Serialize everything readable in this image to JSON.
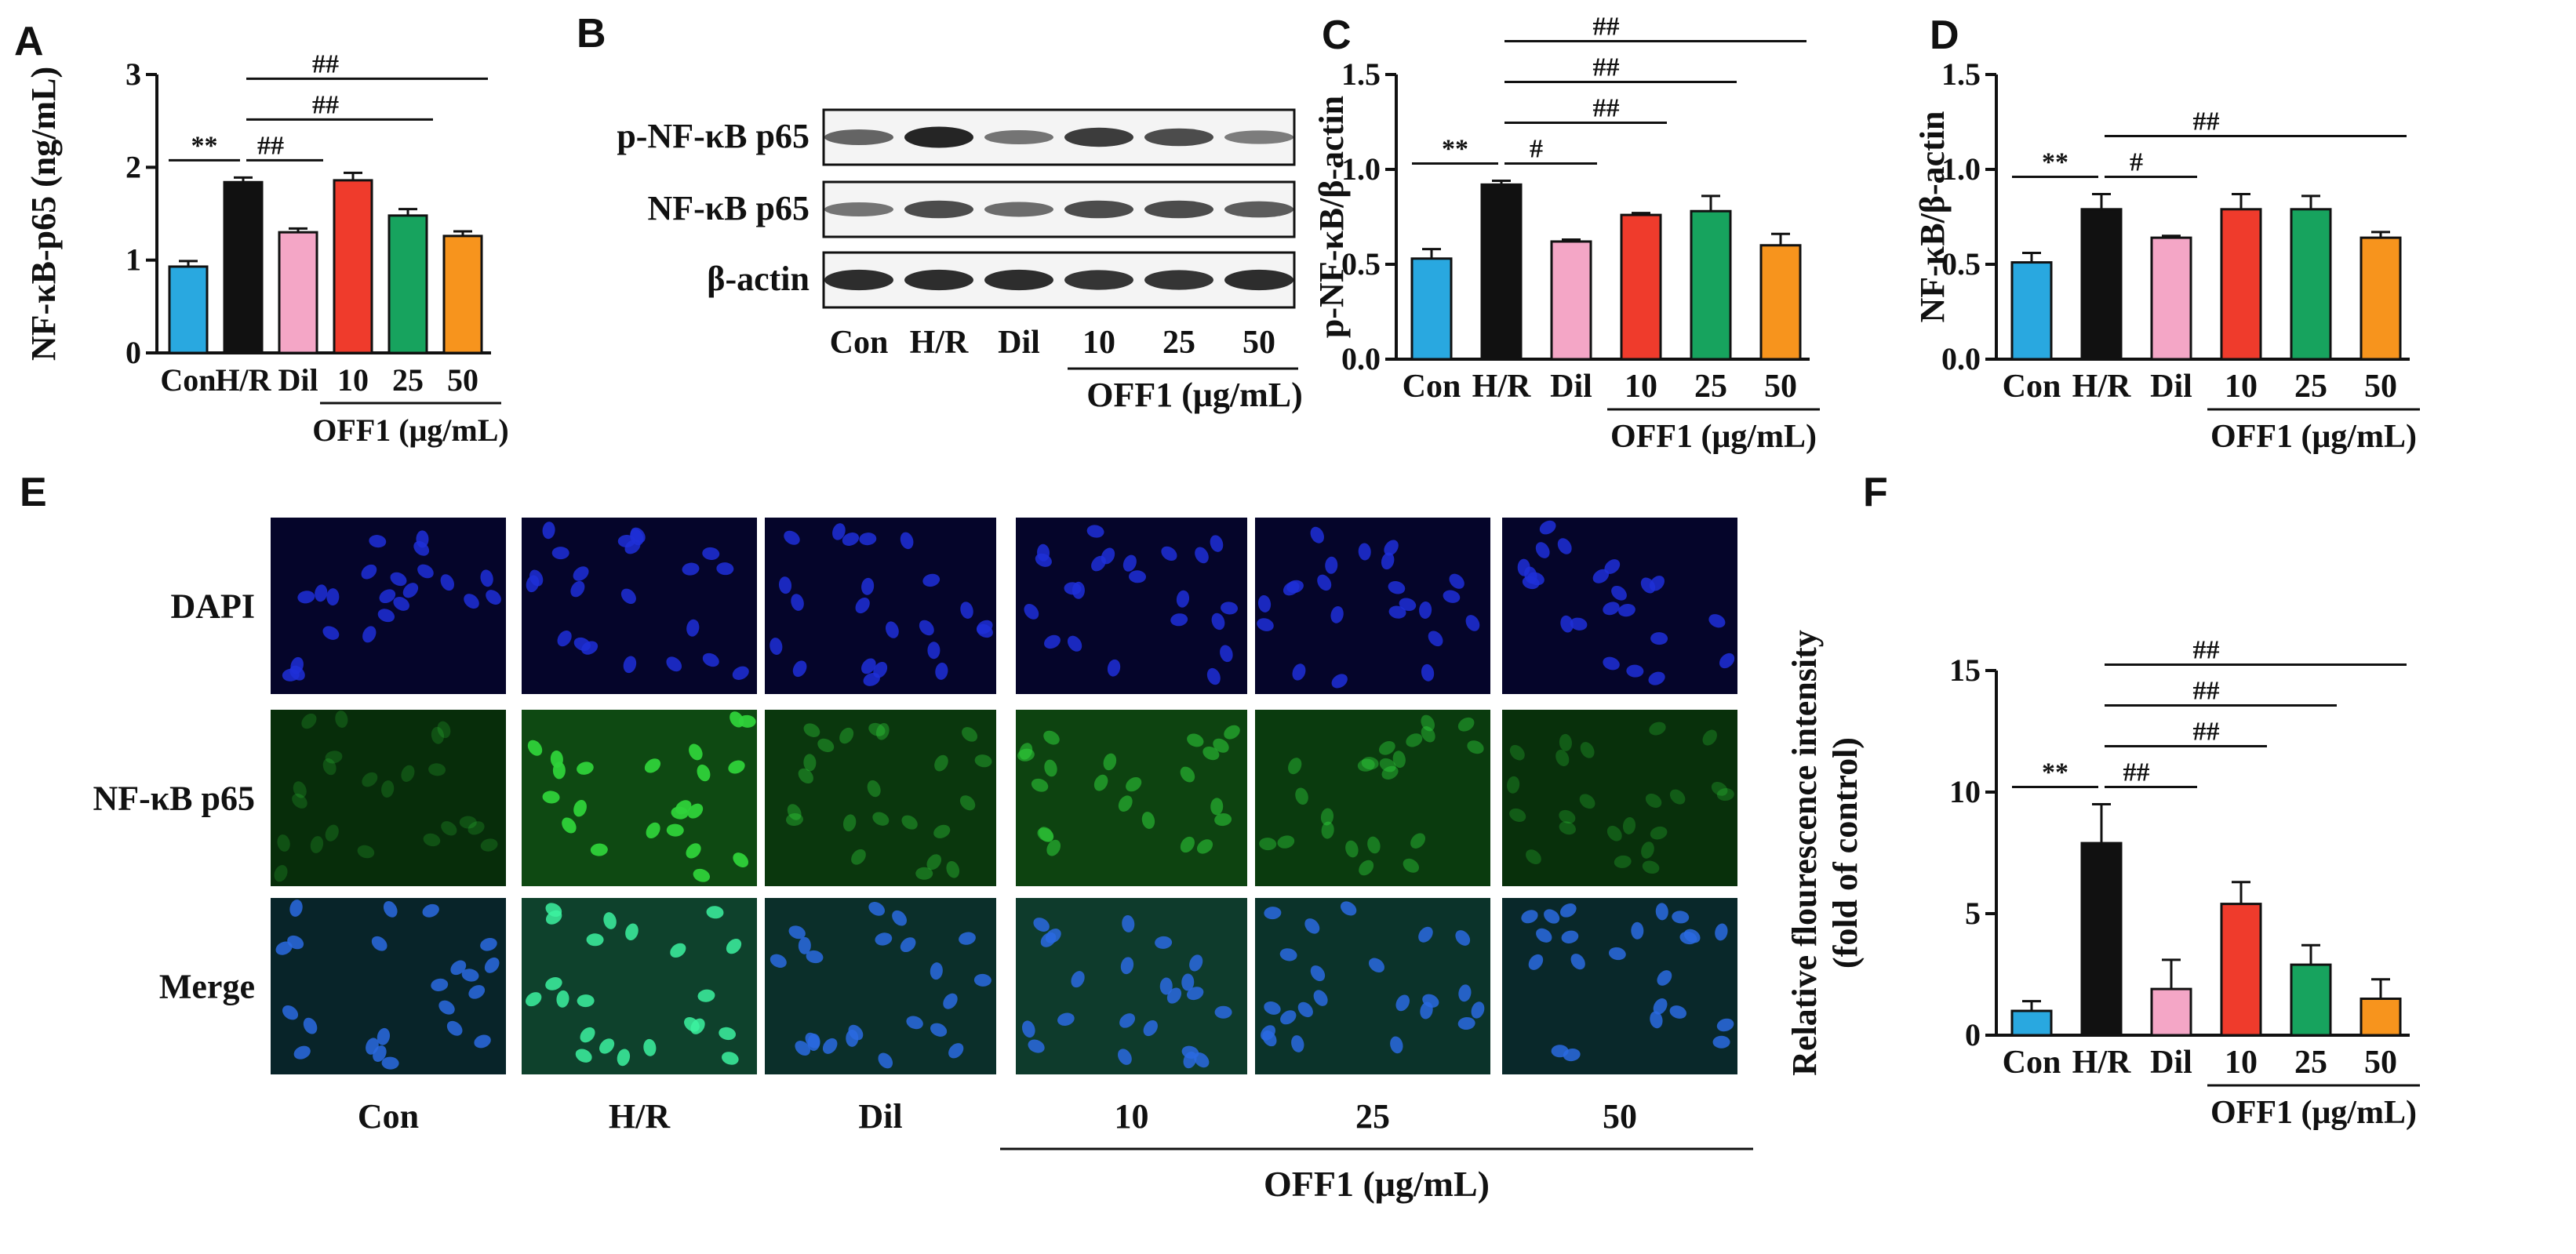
{
  "colors": {
    "con": "#29a8e0",
    "hr": "#111111",
    "dil": "#f4a6c6",
    "c10": "#ef3b2c",
    "c25": "#17a35e",
    "c50": "#f7941d",
    "dapi_bg": "#05052a",
    "dapi_nuc": "#1f2fd8",
    "green": "#2fd23a"
  },
  "groups": [
    "Con",
    "H/R",
    "Dil",
    "10",
    "25",
    "50"
  ],
  "off1_label": "OFF1 (μg/mL)",
  "chart_data": [
    {
      "panel": "A",
      "type": "bar",
      "categories": [
        "Con",
        "H/R",
        "Dil",
        "10",
        "25",
        "50"
      ],
      "values": [
        0.93,
        1.84,
        1.3,
        1.86,
        1.48,
        1.26
      ],
      "errors": [
        0.06,
        0.05,
        0.04,
        0.08,
        0.07,
        0.05
      ],
      "ylabel": "NF-κB-p65 (ng/mL)",
      "ylim": [
        0,
        3
      ],
      "yticks": [
        "0",
        "1",
        "2",
        "3"
      ],
      "xgroup_label": "OFF1 (μg/mL)",
      "annotations": [
        {
          "from": 0,
          "to": 1,
          "label": "**"
        },
        {
          "from": 1,
          "to": 2,
          "label": "##"
        },
        {
          "from": 1,
          "to": 4,
          "label": "##"
        },
        {
          "from": 1,
          "to": 5,
          "label": "##"
        }
      ]
    },
    {
      "panel": "C",
      "type": "bar",
      "categories": [
        "Con",
        "H/R",
        "Dil",
        "10",
        "25",
        "50"
      ],
      "values": [
        0.53,
        0.92,
        0.62,
        0.76,
        0.78,
        0.6
      ],
      "errors": [
        0.05,
        0.02,
        0.01,
        0.01,
        0.08,
        0.06
      ],
      "ylabel": "p-NF-κB/β-actin",
      "ylim": [
        0,
        1.5
      ],
      "yticks": [
        "0.0",
        "0.5",
        "1.0",
        "1.5"
      ],
      "xgroup_label": "OFF1 (μg/mL)",
      "annotations": [
        {
          "from": 0,
          "to": 1,
          "label": "**"
        },
        {
          "from": 1,
          "to": 2,
          "label": "#"
        },
        {
          "from": 1,
          "to": 3,
          "label": "##"
        },
        {
          "from": 1,
          "to": 4,
          "label": "##"
        },
        {
          "from": 1,
          "to": 5,
          "label": "##"
        }
      ]
    },
    {
      "panel": "D",
      "type": "bar",
      "categories": [
        "Con",
        "H/R",
        "Dil",
        "10",
        "25",
        "50"
      ],
      "values": [
        0.51,
        0.79,
        0.64,
        0.79,
        0.79,
        0.64
      ],
      "errors": [
        0.05,
        0.08,
        0.01,
        0.08,
        0.07,
        0.03
      ],
      "ylabel": "NF-κB/β-actin",
      "ylim": [
        0,
        1.5
      ],
      "yticks": [
        "0.0",
        "0.5",
        "1.0",
        "1.5"
      ],
      "xgroup_label": "OFF1 (μg/mL)",
      "annotations": [
        {
          "from": 0,
          "to": 1,
          "label": "**"
        },
        {
          "from": 1,
          "to": 2,
          "label": "#"
        },
        {
          "from": 1,
          "to": 5,
          "label": "##"
        }
      ]
    },
    {
      "panel": "F",
      "type": "bar",
      "categories": [
        "Con",
        "H/R",
        "Dil",
        "10",
        "25",
        "50"
      ],
      "values": [
        1.0,
        7.9,
        1.9,
        5.4,
        2.9,
        1.5
      ],
      "errors": [
        0.4,
        1.6,
        1.2,
        0.9,
        0.8,
        0.8
      ],
      "ylabel": "Relative flourescence intensity (fold of control)",
      "ylabel_lines": [
        "Relative flourescence intensity",
        "(fold of control)"
      ],
      "ylim": [
        0,
        15
      ],
      "yticks": [
        "0",
        "5",
        "10",
        "15"
      ],
      "xgroup_label": "OFF1 (μg/mL)",
      "annotations": [
        {
          "from": 0,
          "to": 1,
          "label": "**"
        },
        {
          "from": 1,
          "to": 2,
          "label": "##"
        },
        {
          "from": 1,
          "to": 3,
          "label": "##"
        },
        {
          "from": 1,
          "to": 4,
          "label": "##"
        },
        {
          "from": 1,
          "to": 5,
          "label": "##"
        }
      ]
    }
  ],
  "western_blot": {
    "panel": "B",
    "rows": [
      {
        "label": "p-NF-κB p65",
        "intensity": [
          0.55,
          0.95,
          0.45,
          0.8,
          0.7,
          0.4
        ]
      },
      {
        "label": "NF-κB p65",
        "intensity": [
          0.45,
          0.7,
          0.5,
          0.7,
          0.7,
          0.6
        ]
      },
      {
        "label": "β-actin",
        "intensity": [
          0.9,
          0.9,
          0.9,
          0.85,
          0.85,
          0.9
        ]
      }
    ],
    "lanes": [
      "Con",
      "H/R",
      "Dil",
      "10",
      "25",
      "50"
    ],
    "group_label": "OFF1 (μg/mL)"
  },
  "microscopy": {
    "panel": "E",
    "rows": [
      "DAPI",
      "NF-κB p65",
      "Merge"
    ],
    "columns": [
      "Con",
      "H/R",
      "Dil",
      "10",
      "25",
      "50"
    ],
    "group_label": "OFF1 (μg/mL)"
  },
  "panel_letters": [
    "A",
    "B",
    "C",
    "D",
    "E",
    "F"
  ]
}
